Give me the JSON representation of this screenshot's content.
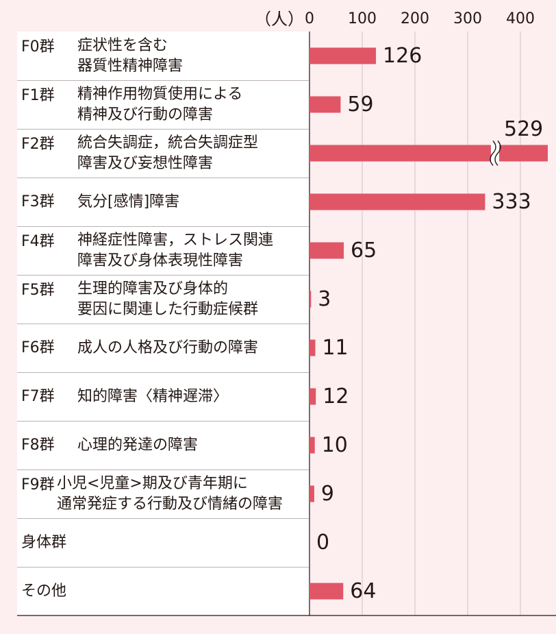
{
  "chart_data": {
    "type": "bar",
    "orientation": "horizontal",
    "unit": "（人）",
    "xlim": [
      0,
      450
    ],
    "ticks": [
      0,
      100,
      200,
      300,
      400
    ],
    "grid": true,
    "bar_color": "#e05666",
    "rows": [
      {
        "code": "F0群",
        "name": "症状性を含む\n器質性精神障害",
        "value": 126,
        "label": "126"
      },
      {
        "code": "F1群",
        "name": "精神作用物質使用による\n精神及び行動の障害",
        "value": 59,
        "label": "59"
      },
      {
        "code": "F2群",
        "name": "統合失調症，統合失調症型\n障害及び妄想性障害",
        "value": 529,
        "label": "529",
        "broken_axis": true
      },
      {
        "code": "F3群",
        "name": "気分[感情]障害",
        "value": 333,
        "label": "333"
      },
      {
        "code": "F4群",
        "name": "神経症性障害，ストレス関連\n障害及び身体表現性障害",
        "value": 65,
        "label": "65"
      },
      {
        "code": "F5群",
        "name": "生理的障害及び身体的\n要因に関連した行動症候群",
        "value": 3,
        "label": "3"
      },
      {
        "code": "F6群",
        "name": "成人の人格及び行動の障害",
        "value": 11,
        "label": "11"
      },
      {
        "code": "F7群",
        "name": "知的障害〈精神遅滞〉",
        "value": 12,
        "label": "12"
      },
      {
        "code": "F8群",
        "name": "心理的発達の障害",
        "value": 10,
        "label": "10"
      },
      {
        "code": "F9群",
        "name": "小児<児童>期及び青年期に\n通常発症する行動及び情緒の障害",
        "value": 9,
        "label": "9"
      },
      {
        "code": "",
        "name": "身体群",
        "value": 0,
        "label": "0"
      },
      {
        "code": "",
        "name": "その他",
        "value": 64,
        "label": "64"
      }
    ]
  }
}
